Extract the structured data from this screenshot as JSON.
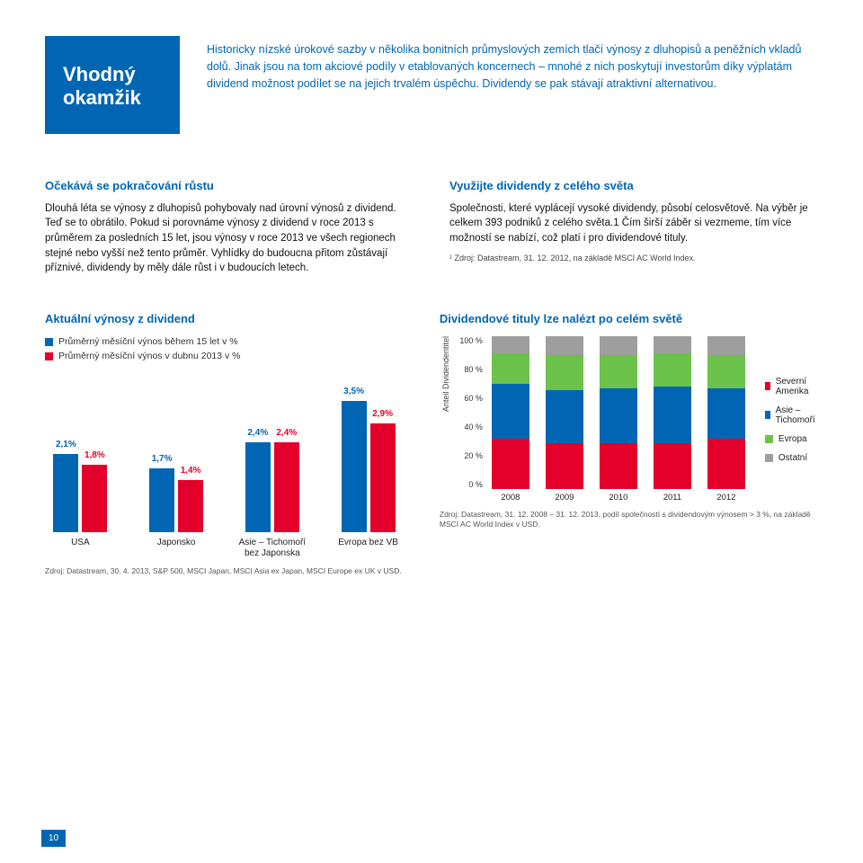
{
  "header": {
    "title_line1": "Vhodný",
    "title_line2": "okamžik",
    "title_bg": "#0066b3",
    "intro": "Historicky nízské úrokové sazby v několika bonitních průmyslových zemích tlačí výnosy z dluhopisů a peněžních vkladů dolů. Jinak jsou na tom akciové podíly v etablovaných koncernech – mnohé z nich poskytují investorům díky výplatám dividend možnost podílet se na jejich trvalém úspěchu. Dividendy se pak stávají atraktivní alternativou."
  },
  "left_col": {
    "heading": "Očekává se pokračování růstu",
    "body": "Dlouhá léta se výnosy z dluhopisů pohybovaly nad úrovní výnosů z dividend. Teď se to obrátilo. Pokud si porovnáme výnosy z dividend v roce 2013 s průměrem za posledních 15 let, jsou výnosy v roce 2013 ve všech regionech stejné nebo vyšší než tento průměr. Vyhlídky do budoucna přitom zůstávají příznivé, dividendy by měly dále růst i v budoucích letech."
  },
  "right_col": {
    "heading": "Využijte dividendy z celého světa",
    "body": "Společnosti, které vyplácejí vysoké dividendy, působí celosvětově. Na výběr je celkem 393 podniků z celého světa.1 Čím širší záběr si vezmeme, tím více možností se nabízí, což platí i pro dividendové tituly.",
    "footnote": "¹ Zdroj: Datastream, 31. 12. 2012, na základě MSCI AC World Index."
  },
  "bar_chart": {
    "title": "Aktuální výnosy z dividend",
    "legend1": "Průměrný měsíční výnos během 15 let v %",
    "legend2": "Průměrný měsíční výnos v dubnu 2013 v %",
    "colors": {
      "series1": "#0066b3",
      "series2": "#e4002b"
    },
    "max": 3.6,
    "groups": [
      {
        "cat": "USA",
        "v1": 2.1,
        "l1": "2,1%",
        "v2": 1.8,
        "l2": "1,8%"
      },
      {
        "cat": "Japonsko",
        "v1": 1.7,
        "l1": "1,7%",
        "v2": 1.4,
        "l2": "1,4%"
      },
      {
        "cat": "Asie – Tichomoří bez Japonska",
        "v1": 2.4,
        "l1": "2,4%",
        "v2": 2.4,
        "l2": "2,4%"
      },
      {
        "cat": "Evropa bez VB",
        "v1": 3.5,
        "l1": "3,5%",
        "v2": 2.9,
        "l2": "2,9%"
      }
    ],
    "source": "Zdroj: Datastream, 30. 4. 2013, S&P 500, MSCI Japan, MSCI Asia ex Japan, MSCI Europe ex UK v USD."
  },
  "stack_chart": {
    "title": "Dividendové tituly lze nalézt po celém světě",
    "yaxis_label": "Anteil Dividendentitel",
    "yticks": [
      "100 %",
      "80 %",
      "60 %",
      "40 %",
      "20 %",
      "0 %"
    ],
    "years": [
      "2008",
      "2009",
      "2010",
      "2011",
      "2012"
    ],
    "segments": [
      "na",
      "apac",
      "eu",
      "other"
    ],
    "colors": {
      "na": "#e4002b",
      "apac": "#0066b3",
      "eu": "#6cc24a",
      "other": "#9e9e9e"
    },
    "legend": {
      "na": "Severní Amerika",
      "apac": "Asie – Tichomoří",
      "eu": "Evropa",
      "other": "Ostatní"
    },
    "data": [
      {
        "na": 33,
        "apac": 36,
        "eu": 20,
        "other": 11
      },
      {
        "na": 30,
        "apac": 35,
        "eu": 23,
        "other": 12
      },
      {
        "na": 30,
        "apac": 36,
        "eu": 22,
        "other": 12
      },
      {
        "na": 30,
        "apac": 37,
        "eu": 22,
        "other": 11
      },
      {
        "na": 33,
        "apac": 33,
        "eu": 22,
        "other": 12
      }
    ],
    "source": "Zdroj: Datastream, 31. 12. 2008 – 31. 12. 2013, podíl společností s dividendovým výnosem > 3 %, na základě MSCI AC World Index v USD."
  },
  "page_number": "10"
}
